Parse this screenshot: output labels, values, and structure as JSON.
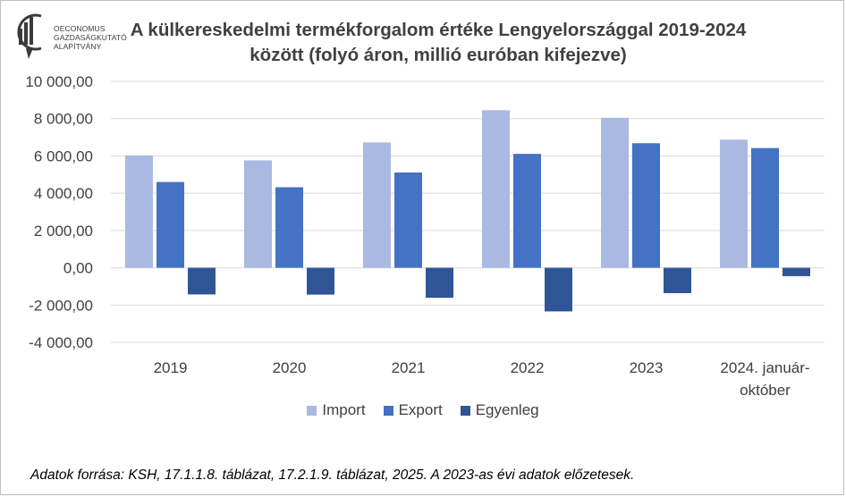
{
  "logo": {
    "lines": [
      "OECONOMUS",
      "GAZDASÁGKUTATÓ",
      "ALAPÍTVÁNY"
    ]
  },
  "title_lines": [
    "A külkereskedelmi termékforgalom értéke Lengyelországgal 2019-2024",
    "között (folyó áron, millió euróban kifejezve)"
  ],
  "footnote": "Adatok forrása: KSH, 17.1.1.8. táblázat, 17.2.1.9. táblázat, 2025. A 2023-as évi adatok előzetesek.",
  "chart_data": {
    "type": "bar",
    "title": "A külkereskedelmi termékforgalom értéke Lengyelországgal 2019-2024 között (folyó áron, millió euróban kifejezve)",
    "xlabel": "",
    "ylabel": "",
    "categories": [
      [
        "2019"
      ],
      [
        "2020"
      ],
      [
        "2021"
      ],
      [
        "2022"
      ],
      [
        "2023"
      ],
      [
        "2024. január-",
        "október"
      ]
    ],
    "series": [
      {
        "name": "Import",
        "color": "#a9b9e2",
        "values": [
          6030,
          5760,
          6720,
          8450,
          8040,
          6870
        ]
      },
      {
        "name": "Export",
        "color": "#4472c4",
        "values": [
          4600,
          4320,
          5110,
          6110,
          6680,
          6420
        ]
      },
      {
        "name": "Egyenleg",
        "color": "#2f5597",
        "values": [
          -1430,
          -1440,
          -1610,
          -2340,
          -1360,
          -450
        ]
      }
    ],
    "ylim": [
      -4000,
      10000
    ],
    "yticks": [
      -4000,
      -2000,
      0,
      2000,
      4000,
      6000,
      8000,
      10000
    ],
    "ytick_labels": [
      "-4 000,00",
      "-2 000,00",
      "0,00",
      "2 000,00",
      "4 000,00",
      "6 000,00",
      "8 000,00",
      "10 000,00"
    ],
    "grid": true,
    "legend_position": "bottom"
  }
}
